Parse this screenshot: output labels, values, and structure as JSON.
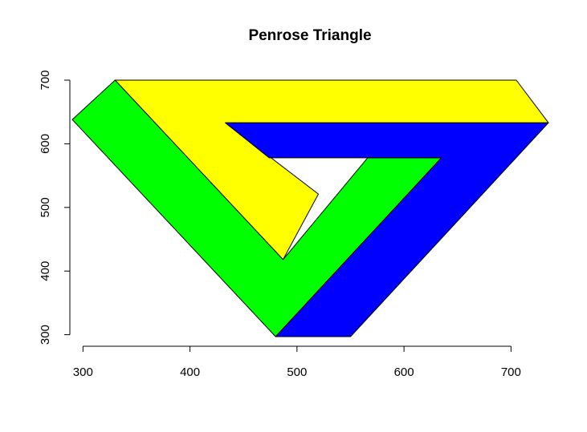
{
  "chart_data": {
    "type": "polygon",
    "title": "Penrose Triangle",
    "xlabel": "",
    "ylabel": "",
    "xlim": [
      290,
      735
    ],
    "ylim": [
      297,
      700
    ],
    "xticks": [
      300,
      400,
      500,
      600,
      700
    ],
    "yticks": [
      300,
      400,
      500,
      600,
      700
    ],
    "grid": false,
    "polygons": [
      {
        "name": "yellow-bar",
        "color": "#ffff00",
        "points": [
          [
            330,
            700
          ],
          [
            705,
            700
          ],
          [
            735,
            633
          ],
          [
            433,
            633
          ],
          [
            520,
            521
          ],
          [
            487,
            418
          ]
        ]
      },
      {
        "name": "green-bar",
        "color": "#00ff00",
        "points": [
          [
            290,
            638
          ],
          [
            330,
            700
          ],
          [
            487,
            418
          ],
          [
            566,
            578
          ],
          [
            635,
            578
          ],
          [
            480,
            297
          ]
        ]
      },
      {
        "name": "blue-bar",
        "color": "#0000ff",
        "points": [
          [
            433,
            633
          ],
          [
            735,
            633
          ],
          [
            550,
            297
          ],
          [
            480,
            297
          ],
          [
            635,
            578
          ],
          [
            474,
            578
          ]
        ]
      }
    ]
  }
}
